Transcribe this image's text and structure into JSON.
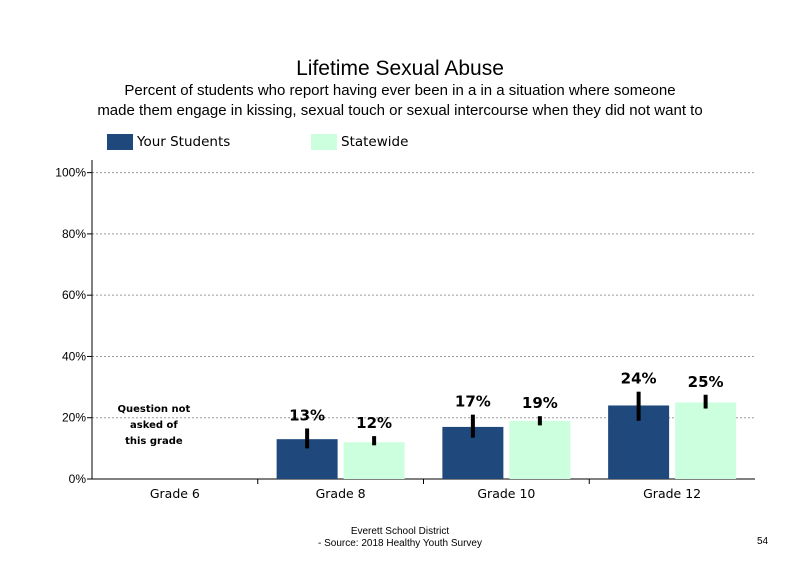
{
  "chart_data": {
    "type": "bar",
    "title": "Lifetime Sexual Abuse",
    "subtitle": [
      "Percent of students who report having ever been in a in a situation where someone",
      "made them engage in kissing, sexual touch or sexual intercourse when they did not want to"
    ],
    "categories": [
      "Grade 6",
      "Grade 8",
      "Grade 10",
      "Grade 12"
    ],
    "series": [
      {
        "name": "Your Students",
        "color": "#1F497D",
        "values": [
          null,
          13,
          17,
          24
        ],
        "labels": [
          "",
          "13%",
          "17%",
          "24%"
        ],
        "error_low": [
          null,
          10,
          13.5,
          19
        ],
        "error_high": [
          null,
          16.5,
          21,
          28.5
        ]
      },
      {
        "name": "Statewide",
        "color": "#CCFFDD",
        "values": [
          null,
          12,
          19,
          25
        ],
        "labels": [
          "",
          "12%",
          "19%",
          "25%"
        ],
        "error_low": [
          null,
          11,
          17.5,
          23
        ],
        "error_high": [
          null,
          14,
          20.5,
          27.5
        ]
      }
    ],
    "ylim": [
      0,
      110
    ],
    "yticks": [
      0,
      20,
      40,
      60,
      80,
      100
    ],
    "ytick_labels": [
      "0%",
      "20%",
      "40%",
      "60%",
      "80%",
      "100%"
    ],
    "grid": "dotted",
    "legend": "top-left",
    "annotations": [
      {
        "category": "Grade 6",
        "lines": [
          "Question not",
          "asked of",
          "this grade"
        ]
      }
    ]
  },
  "footer": {
    "line1": "Everett School District",
    "line2": "- Source: 2018 Healthy  Youth Survey",
    "page_number": "54"
  }
}
